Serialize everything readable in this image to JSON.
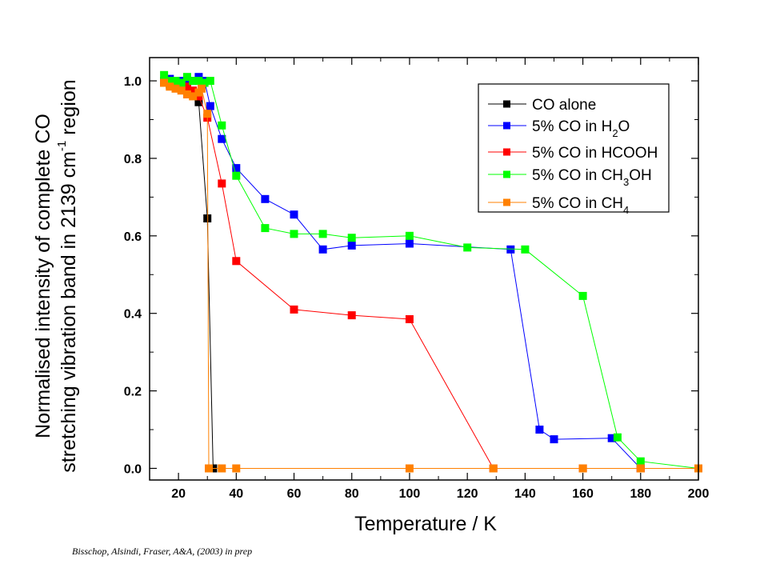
{
  "caption": "Bisschop, Alsindi, Fraser, A&A, (2003) in prep",
  "chart_data": {
    "type": "line",
    "title": "",
    "xlabel": "Temperature / K",
    "ylabel_line1": "Normalised intensity of complete CO",
    "ylabel_line2": {
      "pre": "stretching vibration band in 2139 cm",
      "sup": "-1",
      "post": " region"
    },
    "xlim": [
      10,
      200
    ],
    "ylim": [
      -0.03,
      1.06
    ],
    "xticks": [
      20,
      40,
      60,
      80,
      100,
      120,
      140,
      160,
      180,
      200
    ],
    "yticks": [
      0.0,
      0.2,
      0.4,
      0.6,
      0.8,
      1.0
    ],
    "ytick_labels": [
      "0.0",
      "0.2",
      "0.4",
      "0.6",
      "0.8",
      "1.0"
    ],
    "grid": false,
    "legend_position": "top-right",
    "series": [
      {
        "key": "co-alone",
        "name": "CO alone",
        "label_parts": [
          [
            "CO alone",
            ""
          ]
        ],
        "color": "#000000",
        "x": [
          15,
          17,
          19,
          21,
          23,
          25,
          27,
          30,
          32
        ],
        "y": [
          1.0,
          0.99,
          0.985,
          0.98,
          0.975,
          0.965,
          0.945,
          0.645,
          0.0
        ]
      },
      {
        "key": "co-h2o",
        "name": "5% CO in H2O",
        "label_parts": [
          [
            "5% CO in H",
            ""
          ],
          [
            "2",
            "sub"
          ],
          [
            "O",
            ""
          ]
        ],
        "color": "#0000ff",
        "x": [
          15,
          17,
          19,
          21,
          23,
          25,
          27,
          29,
          31,
          35,
          40,
          50,
          60,
          70,
          80,
          100,
          135,
          145,
          150,
          170,
          180
        ],
        "y": [
          1.0,
          1.005,
          0.995,
          1.0,
          0.995,
          1.0,
          1.01,
          1.0,
          0.935,
          0.85,
          0.775,
          0.695,
          0.655,
          0.565,
          0.575,
          0.58,
          0.565,
          0.1,
          0.075,
          0.078,
          0.0
        ]
      },
      {
        "key": "co-hcooh",
        "name": "5% CO in HCOOH",
        "label_parts": [
          [
            "5% CO in HCOOH",
            ""
          ]
        ],
        "color": "#ff0000",
        "x": [
          15,
          17,
          19,
          21,
          23,
          25,
          27,
          30,
          35,
          40,
          60,
          80,
          100,
          129,
          160,
          180
        ],
        "y": [
          0.995,
          0.995,
          0.99,
          0.99,
          0.985,
          0.975,
          0.96,
          0.905,
          0.735,
          0.535,
          0.41,
          0.395,
          0.385,
          0.0,
          0.0,
          0.0
        ]
      },
      {
        "key": "co-ch3oh",
        "name": "5% CO in CH3OH",
        "label_parts": [
          [
            "5% CO in CH",
            ""
          ],
          [
            "3",
            "sub"
          ],
          [
            "OH",
            ""
          ]
        ],
        "color": "#00ff00",
        "x": [
          15,
          17,
          19,
          21,
          23,
          25,
          27,
          29,
          31,
          35,
          40,
          50,
          60,
          70,
          80,
          100,
          120,
          140,
          160,
          172,
          180,
          200
        ],
        "y": [
          1.015,
          1.0,
          1.0,
          0.995,
          1.01,
          1.0,
          1.0,
          0.995,
          1.0,
          0.885,
          0.755,
          0.62,
          0.605,
          0.605,
          0.595,
          0.6,
          0.57,
          0.565,
          0.445,
          0.08,
          0.018,
          0.0
        ]
      },
      {
        "key": "co-ch4",
        "name": "5% CO in CH4",
        "label_parts": [
          [
            "5% CO in CH",
            ""
          ],
          [
            "4",
            "sub"
          ]
        ],
        "color": "#ff8000",
        "x": [
          15,
          17,
          19,
          21,
          23,
          25,
          27,
          28,
          30,
          30.5,
          35,
          40,
          100,
          129,
          160,
          180,
          200
        ],
        "y": [
          0.995,
          0.985,
          0.98,
          0.975,
          0.965,
          0.96,
          0.97,
          0.98,
          0.915,
          0.0,
          0.0,
          0.0,
          0.0,
          0.0,
          0.0,
          0.0,
          0.0
        ]
      }
    ]
  }
}
